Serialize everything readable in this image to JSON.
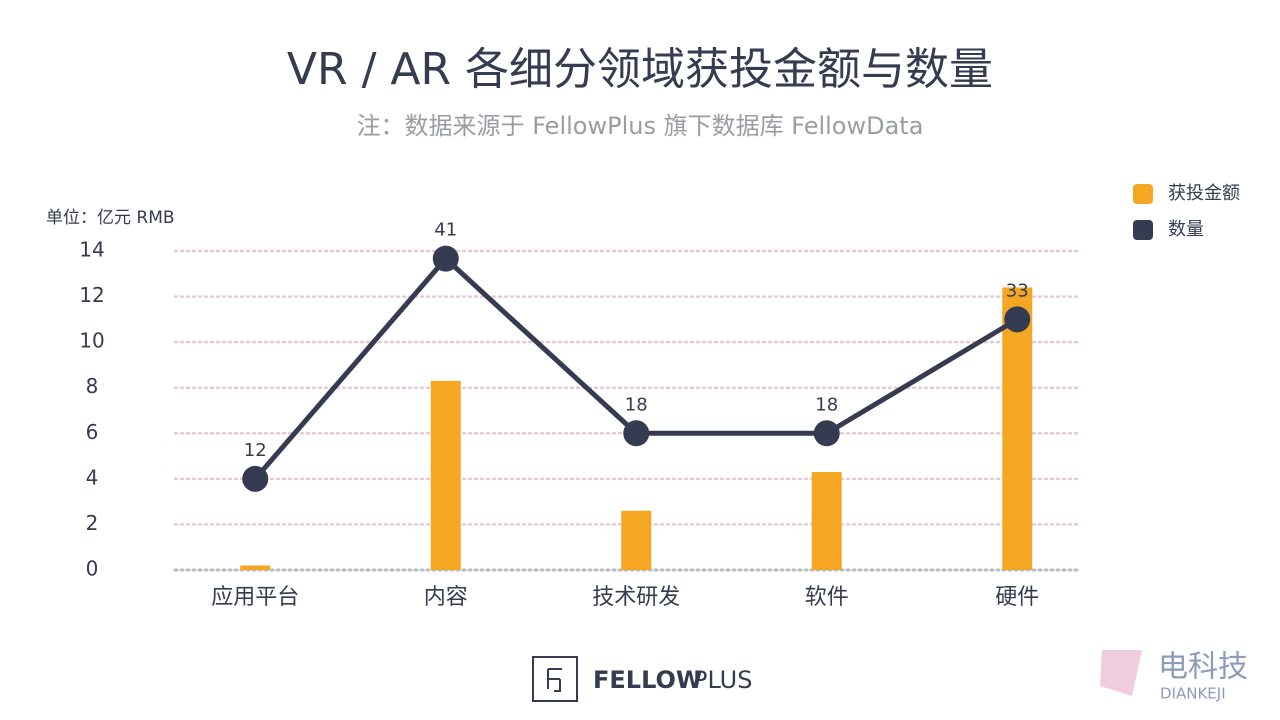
{
  "chart_data": {
    "type": "bar",
    "title": "VR  /  AR 各细分领域获投金额与数量",
    "subtitle": "注：数据来源于 FellowPlus 旗下数据库 FellowData",
    "y_label": "单位：亿元 RMB",
    "categories": [
      "应用平台",
      "内容",
      "技术研发",
      "软件",
      "硬件"
    ],
    "series": [
      {
        "name": "获投金额",
        "type": "bar",
        "color": "#f5a623",
        "values": [
          0.2,
          8.3,
          2.6,
          4.3,
          12.4
        ]
      },
      {
        "name": "数量",
        "type": "line",
        "color": "#353b50",
        "axis": "y2",
        "values": [
          12,
          41,
          18,
          18,
          33
        ]
      }
    ],
    "ylim": [
      0,
      14
    ],
    "yticks": [
      0,
      2,
      4,
      6,
      8,
      10,
      12,
      14
    ],
    "y2lim": [
      0,
      42
    ],
    "grid": true,
    "legend": "top right"
  },
  "brand": {
    "bold": "FELLOW",
    "light": "PLUS"
  },
  "watermark": {
    "text": "电科技",
    "sub": "DIANKEJI"
  }
}
